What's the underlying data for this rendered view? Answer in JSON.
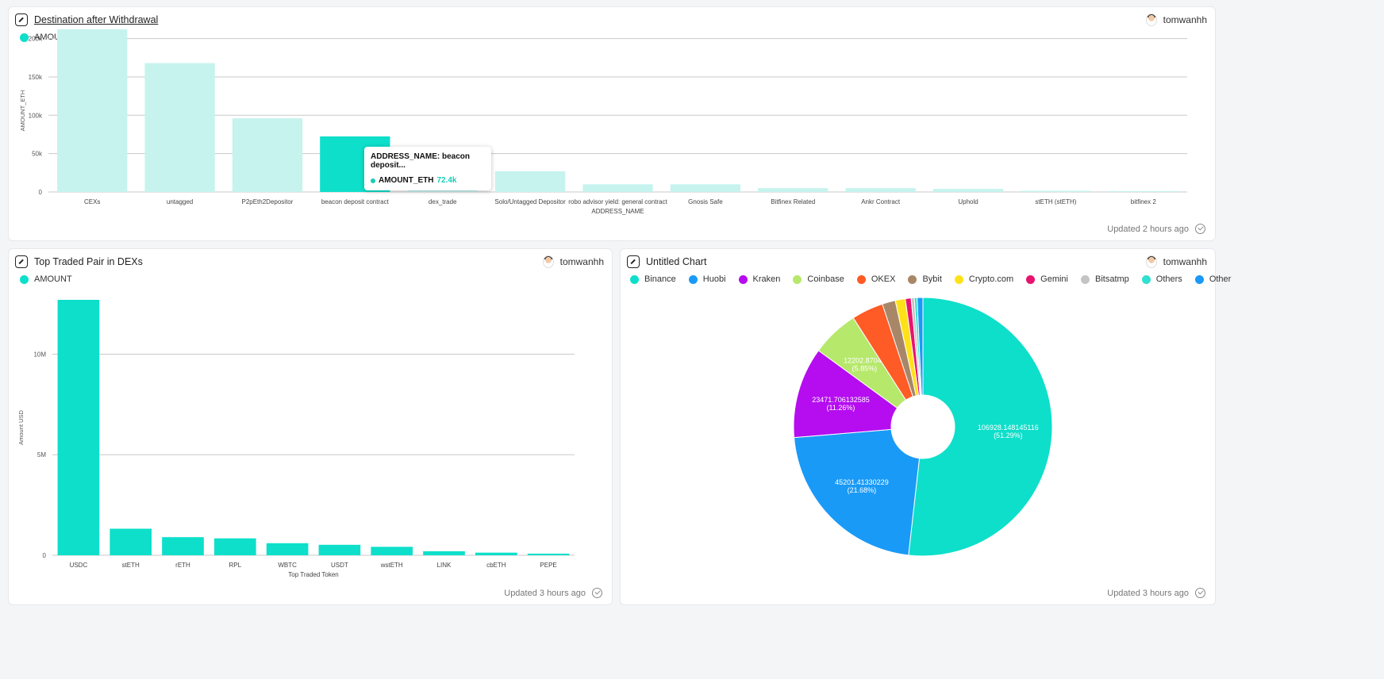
{
  "colors": {
    "teal": "#0ddfca",
    "teal_light": "#c6f3ee",
    "grid": "#c9c9c9"
  },
  "card1": {
    "title": "Destination after Withdrawal",
    "author": "tomwanhh",
    "legend": "AMOUNT_ETH",
    "updated": "Updated 2 hours ago",
    "tooltip": {
      "line1": "ADDRESS_NAME: beacon deposit...",
      "label": "AMOUNT_ETH",
      "value": "72.4k"
    }
  },
  "card2": {
    "title": "Top Traded Pair in DEXs",
    "author": "tomwanhh",
    "legend": "AMOUNT",
    "updated": "Updated 3 hours ago"
  },
  "card3": {
    "title": "Untitled Chart",
    "author": "tomwanhh",
    "updated": "Updated 3 hours ago"
  },
  "chart_data": [
    {
      "type": "bar",
      "title": "Destination after Withdrawal",
      "xlabel": "ADDRESS_NAME",
      "ylabel": "AMOUNT_ETH",
      "series": [
        {
          "name": "AMOUNT_ETH"
        }
      ],
      "categories": [
        "CEXs",
        "untagged",
        "P2pEth2Depositor",
        "beacon deposit contract",
        "dex_trade",
        "Solo/Untagged Depositor",
        "robo advisor yield: general contract",
        "Gnosis Safe",
        "Bitfinex Related",
        "Ankr Contract",
        "Uphold",
        "stETH (stETH)",
        "bitfinex 2"
      ],
      "values": [
        212000,
        168000,
        96000,
        72400,
        28000,
        27000,
        10000,
        10000,
        5000,
        5000,
        4000,
        1500,
        1200
      ],
      "highlight_index": 3,
      "ylim": [
        0,
        212000
      ],
      "yticks": [
        0,
        50000,
        100000,
        150000,
        200000
      ],
      "ytick_labels": [
        "0",
        "50k",
        "100k",
        "150k",
        "200k"
      ],
      "grid": true,
      "legend_position": "top-left"
    },
    {
      "type": "bar",
      "title": "Top Traded Pair in DEXs",
      "xlabel": "Top Traded Token",
      "ylabel": "Amount USD",
      "series": [
        {
          "name": "AMOUNT"
        }
      ],
      "categories": [
        "USDC",
        "stETH",
        "rETH",
        "RPL",
        "WBTC",
        "USDT",
        "wstETH",
        "LINK",
        "cbETH",
        "PEPE"
      ],
      "values": [
        12700000,
        1320000,
        900000,
        840000,
        600000,
        520000,
        420000,
        200000,
        130000,
        80000
      ],
      "ylim": [
        0,
        12700000
      ],
      "yticks": [
        0,
        5000000,
        10000000
      ],
      "ytick_labels": [
        "0",
        "5M",
        "10M"
      ],
      "grid": true,
      "legend_position": "top-left"
    },
    {
      "type": "pie",
      "title": "Untitled Chart",
      "donut": true,
      "slices": [
        {
          "name": "Binance",
          "value": 106928.148145116,
          "label": "106928.148145116",
          "pct": "(51.29%)",
          "color": "#0ddfca"
        },
        {
          "name": "Huobi",
          "value": 45201.41330229,
          "label": "45201.41330229",
          "pct": "(21.68%)",
          "color": "#1a9af7"
        },
        {
          "name": "Kraken",
          "value": 23471.706132585,
          "label": "23471.706132585",
          "pct": "(11.26%)",
          "color": "#b50df0"
        },
        {
          "name": "Coinbase",
          "value": 12202.87041,
          "label": "12202.87041",
          "pct": "(5.85%)",
          "color": "#b6e86b"
        },
        {
          "name": "OKEX",
          "value": 8200,
          "label": "",
          "pct": "",
          "color": "#ff5b26"
        },
        {
          "name": "Bybit",
          "value": 3400,
          "label": "",
          "pct": "",
          "color": "#a88768"
        },
        {
          "name": "Crypto.com",
          "value": 2600,
          "label": "",
          "pct": "",
          "color": "#ffe11a"
        },
        {
          "name": "Gemini",
          "value": 1500,
          "label": "",
          "pct": "",
          "color": "#e6146f"
        },
        {
          "name": "Bitsatmp",
          "value": 800,
          "label": "",
          "pct": "",
          "color": "#c4c4c4"
        },
        {
          "name": "Others",
          "value": 700,
          "label": "",
          "pct": "",
          "color": "#2fe0d0"
        },
        {
          "name": "Other",
          "value": 1500,
          "label": "",
          "pct": "",
          "color": "#1a9af7"
        }
      ],
      "legend_position": "top"
    }
  ]
}
